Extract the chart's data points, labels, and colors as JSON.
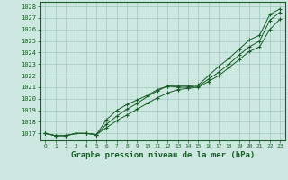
{
  "title": "Graphe pression niveau de la mer (hPa)",
  "bg_color": "#cce8e0",
  "grid_color": "#a0c8c0",
  "line_color": "#1a5c2a",
  "marker_color": "#1a5c2a",
  "xlim": [
    -0.5,
    23.5
  ],
  "ylim": [
    1016.4,
    1028.4
  ],
  "yticks": [
    1017,
    1018,
    1019,
    1020,
    1021,
    1022,
    1023,
    1024,
    1025,
    1026,
    1027,
    1028
  ],
  "xticks": [
    0,
    1,
    2,
    3,
    4,
    5,
    6,
    7,
    8,
    9,
    10,
    11,
    12,
    13,
    14,
    15,
    16,
    17,
    18,
    19,
    20,
    21,
    22,
    23
  ],
  "series1": [
    1017.0,
    1016.8,
    1016.8,
    1017.0,
    1017.0,
    1016.9,
    1017.8,
    1018.5,
    1019.1,
    1019.6,
    1020.2,
    1020.7,
    1021.1,
    1021.0,
    1021.0,
    1021.1,
    1021.7,
    1022.3,
    1023.0,
    1023.8,
    1024.5,
    1025.0,
    1026.8,
    1027.5
  ],
  "series2": [
    1017.0,
    1016.8,
    1016.8,
    1017.0,
    1017.0,
    1016.9,
    1018.2,
    1019.0,
    1019.5,
    1019.9,
    1020.3,
    1020.8,
    1021.1,
    1021.1,
    1021.1,
    1021.2,
    1022.0,
    1022.8,
    1023.5,
    1024.3,
    1025.1,
    1025.5,
    1027.3,
    1027.8
  ],
  "series3": [
    1017.0,
    1016.8,
    1016.8,
    1017.0,
    1017.0,
    1016.9,
    1017.5,
    1018.1,
    1018.6,
    1019.1,
    1019.6,
    1020.1,
    1020.5,
    1020.8,
    1020.9,
    1021.0,
    1021.5,
    1022.0,
    1022.7,
    1023.4,
    1024.1,
    1024.5,
    1026.0,
    1026.9
  ]
}
